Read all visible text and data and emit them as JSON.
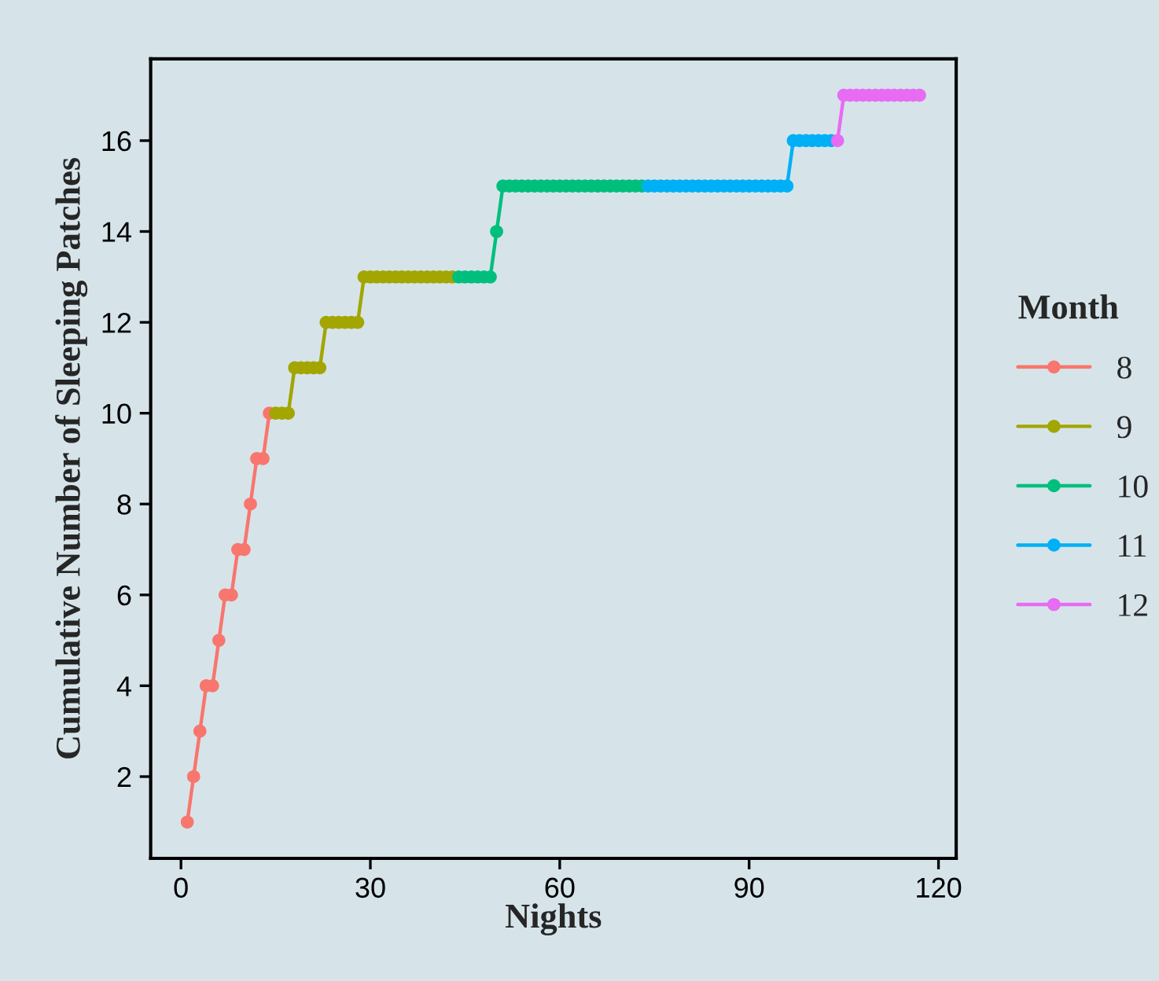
{
  "chart_data": {
    "type": "line",
    "xlabel": "Nights",
    "ylabel": "Cumulative Number of Sleeping Patches",
    "legend_title": "Month",
    "xlim": [
      -4.8,
      122.8
    ],
    "xticks": [
      0,
      30,
      60,
      90,
      120
    ],
    "ylim": [
      0.2,
      17.8
    ],
    "yticks": [
      2,
      4,
      6,
      8,
      10,
      12,
      14,
      16
    ],
    "grid": false,
    "legend": "right",
    "marker": "circle",
    "line_style": "solid",
    "series": [
      {
        "name": "8",
        "color": "#f8766d",
        "x": [
          1,
          2,
          3,
          4,
          5,
          6,
          7,
          8,
          9,
          10,
          11,
          12,
          13,
          14
        ],
        "values": [
          1,
          2,
          3,
          4,
          4,
          5,
          6,
          6,
          7,
          7,
          8,
          9,
          9,
          10
        ]
      },
      {
        "name": "9",
        "color": "#a3a500",
        "x": [
          15,
          16,
          17,
          18,
          19,
          20,
          21,
          22,
          23,
          24,
          25,
          26,
          27,
          28,
          29,
          30,
          31,
          32,
          33,
          34,
          35,
          36,
          37,
          38,
          39,
          40,
          41,
          42,
          43
        ],
        "values": [
          10,
          10,
          10,
          11,
          11,
          11,
          11,
          11,
          12,
          12,
          12,
          12,
          12,
          12,
          13,
          13,
          13,
          13,
          13,
          13,
          13,
          13,
          13,
          13,
          13,
          13,
          13,
          13,
          13
        ]
      },
      {
        "name": "10",
        "color": "#00bf7d",
        "x": [
          44,
          45,
          46,
          47,
          48,
          49,
          50,
          51,
          52,
          53,
          54,
          55,
          56,
          57,
          58,
          59,
          60,
          61,
          62,
          63,
          64,
          65,
          66,
          67,
          68,
          69,
          70,
          71,
          72,
          73
        ],
        "values": [
          13,
          13,
          13,
          13,
          13,
          13,
          14,
          15,
          15,
          15,
          15,
          15,
          15,
          15,
          15,
          15,
          15,
          15,
          15,
          15,
          15,
          15,
          15,
          15,
          15,
          15,
          15,
          15,
          15,
          15
        ]
      },
      {
        "name": "11",
        "color": "#00b0f6",
        "x": [
          74,
          75,
          76,
          77,
          78,
          79,
          80,
          81,
          82,
          83,
          84,
          85,
          86,
          87,
          88,
          89,
          90,
          91,
          92,
          93,
          94,
          95,
          96,
          97,
          98,
          99,
          100,
          101,
          102,
          103
        ],
        "values": [
          15,
          15,
          15,
          15,
          15,
          15,
          15,
          15,
          15,
          15,
          15,
          15,
          15,
          15,
          15,
          15,
          15,
          15,
          15,
          15,
          15,
          15,
          15,
          16,
          16,
          16,
          16,
          16,
          16,
          16
        ]
      },
      {
        "name": "12",
        "color": "#e76bf3",
        "x": [
          104,
          105,
          106,
          107,
          108,
          109,
          110,
          111,
          112,
          113,
          114,
          115,
          116,
          117
        ],
        "values": [
          16,
          17,
          17,
          17,
          17,
          17,
          17,
          17,
          17,
          17,
          17,
          17,
          17,
          17
        ]
      }
    ]
  }
}
